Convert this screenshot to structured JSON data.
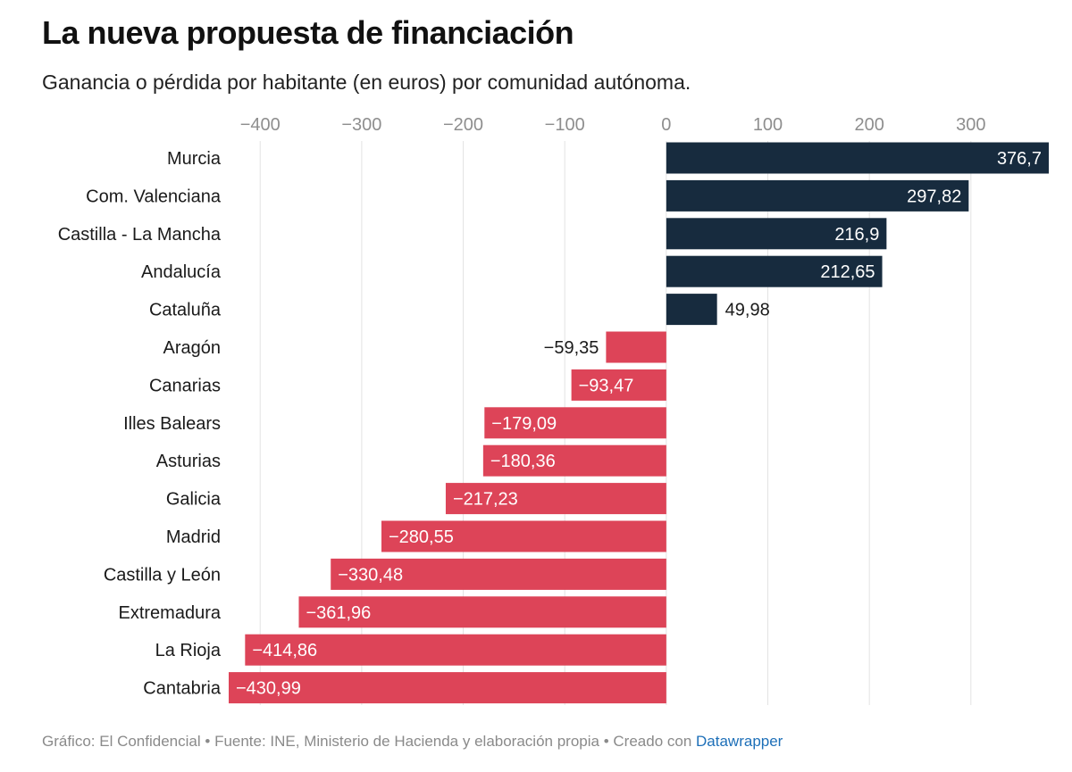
{
  "title": "La nueva propuesta de financiación",
  "subtitle": "Ganancia o pérdida por habitante (en euros) por comunidad autónoma.",
  "footer": {
    "grafico": "Gráfico: El Confidencial",
    "fuente": "Fuente: INE, Ministerio de Hacienda y elaboración propia",
    "creado": "Creado con",
    "tool": "Datawrapper",
    "separator": "•"
  },
  "colors": {
    "positive": "#172b3e",
    "negative": "#dd4458",
    "grid": "#e3e3e3",
    "link": "#1d6fb8"
  },
  "chart_data": {
    "type": "bar",
    "orientation": "horizontal",
    "title": "La nueva propuesta de financiación",
    "subtitle": "Ganancia o pérdida por habitante (en euros) por comunidad autónoma.",
    "xlim": [
      -430.99,
      376.7
    ],
    "xticks": [
      -400,
      -300,
      -200,
      -100,
      0,
      100,
      200,
      300
    ],
    "xtick_labels": [
      "−400",
      "−300",
      "−200",
      "−100",
      "0",
      "100",
      "200",
      "300"
    ],
    "axis_position": "top",
    "grid": true,
    "categories": [
      "Murcia",
      "Com. Valenciana",
      "Castilla - La Mancha",
      "Andalucía",
      "Cataluña",
      "Aragón",
      "Canarias",
      "Illes Balears",
      "Asturias",
      "Galicia",
      "Madrid",
      "Castilla y León",
      "Extremadura",
      "La Rioja",
      "Cantabria"
    ],
    "values": [
      376.7,
      297.82,
      216.9,
      212.65,
      49.98,
      -59.35,
      -93.47,
      -179.09,
      -180.36,
      -217.23,
      -280.55,
      -330.48,
      -361.96,
      -414.86,
      -430.99
    ],
    "value_labels": [
      "376,7",
      "297,82",
      "216,9",
      "212,65",
      "49,98",
      "−59,35",
      "−93,47",
      "−179,09",
      "−180,36",
      "−217,23",
      "−280,55",
      "−330,48",
      "−361,96",
      "−414,86",
      "−430,99"
    ]
  }
}
